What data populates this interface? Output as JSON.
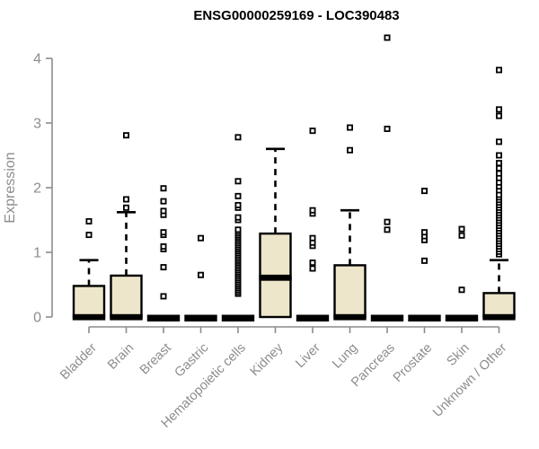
{
  "chart_data": {
    "type": "boxplot",
    "title": "ENSG00000259169 - LOC390483",
    "ylabel": "Expression",
    "xlabel": "",
    "ylim": [
      0,
      4.4
    ],
    "yticks": [
      0,
      1,
      2,
      3,
      4
    ],
    "grid": false,
    "legend": "none",
    "colors": {
      "box_fill": "#EDE6CB",
      "box_stroke": "#000000",
      "median": "#000000",
      "whisker": "#000000",
      "outlier_stroke": "#000000",
      "outlier_fill": "#FFFFFF",
      "axis": "#8C8C8C",
      "tick_label": "#8C8C8C",
      "title": "#000000"
    },
    "categories": [
      "Bladder",
      "Brain",
      "Breast",
      "Gastric",
      "Hematopoietic cells",
      "Kidney",
      "Liver",
      "Lung",
      "Pancreas",
      "Prostate",
      "Skin",
      "Unknown / Other"
    ],
    "boxes": [
      {
        "category": "Bladder",
        "q1": 0,
        "median": 0,
        "q3": 0.48,
        "whisker_low": 0,
        "whisker_high": 0.88,
        "outliers": [
          1.27,
          1.48
        ]
      },
      {
        "category": "Brain",
        "q1": 0,
        "median": 0,
        "q3": 0.64,
        "whisker_low": 0,
        "whisker_high": 1.62,
        "outliers": [
          1.69,
          1.82,
          2.81
        ]
      },
      {
        "category": "Breast",
        "q1": 0,
        "median": 0,
        "q3": 0,
        "whisker_low": 0,
        "whisker_high": 0,
        "outliers": [
          0.32,
          0.77,
          1.05,
          1.09,
          1.27,
          1.31,
          1.58,
          1.64,
          1.79,
          1.99
        ]
      },
      {
        "category": "Gastric",
        "q1": 0,
        "median": 0,
        "q3": 0,
        "whisker_low": 0,
        "whisker_high": 0,
        "outliers": [
          0.65,
          1.22
        ]
      },
      {
        "category": "Hematopoietic cells",
        "q1": 0,
        "median": 0,
        "q3": 0,
        "whisker_low": 0,
        "whisker_high": 0,
        "outliers": [
          0.36,
          0.39,
          0.42,
          0.45,
          0.48,
          0.51,
          0.54,
          0.57,
          0.6,
          0.63,
          0.66,
          0.69,
          0.72,
          0.75,
          0.78,
          0.81,
          0.84,
          0.87,
          0.9,
          0.93,
          0.96,
          0.99,
          1.02,
          1.05,
          1.08,
          1.11,
          1.14,
          1.17,
          1.2,
          1.23,
          1.26,
          1.29,
          1.32,
          1.35,
          1.5,
          1.54,
          1.69,
          1.73,
          1.87,
          2.1,
          2.78
        ]
      },
      {
        "category": "Kidney",
        "q1": 0,
        "median": 0.61,
        "q3": 1.29,
        "whisker_low": 0,
        "whisker_high": 2.6,
        "outliers": []
      },
      {
        "category": "Liver",
        "q1": 0,
        "median": 0,
        "q3": 0,
        "whisker_low": 0,
        "whisker_high": 0,
        "outliers": [
          0.75,
          0.84,
          1.1,
          1.15,
          1.22,
          1.6,
          1.65,
          2.88
        ]
      },
      {
        "category": "Lung",
        "q1": 0,
        "median": 0,
        "q3": 0.8,
        "whisker_low": 0,
        "whisker_high": 1.65,
        "outliers": [
          2.58,
          2.93
        ]
      },
      {
        "category": "Pancreas",
        "q1": 0,
        "median": 0,
        "q3": 0,
        "whisker_low": 0,
        "whisker_high": 0,
        "outliers": [
          1.35,
          1.47,
          2.91,
          4.32
        ]
      },
      {
        "category": "Prostate",
        "q1": 0,
        "median": 0,
        "q3": 0,
        "whisker_low": 0,
        "whisker_high": 0,
        "outliers": [
          0.87,
          1.19,
          1.25,
          1.31,
          1.95
        ]
      },
      {
        "category": "Skin",
        "q1": 0,
        "median": 0,
        "q3": 0,
        "whisker_low": 0,
        "whisker_high": 0,
        "outliers": [
          0.42,
          1.26,
          1.36
        ]
      },
      {
        "category": "Unknown / Other",
        "q1": 0,
        "median": 0,
        "q3": 0.37,
        "whisker_low": 0,
        "whisker_high": 0.88,
        "outliers": [
          0.97,
          1.01,
          1.05,
          1.09,
          1.13,
          1.17,
          1.21,
          1.25,
          1.29,
          1.33,
          1.37,
          1.41,
          1.45,
          1.49,
          1.53,
          1.57,
          1.61,
          1.65,
          1.69,
          1.73,
          1.77,
          1.81,
          1.85,
          1.89,
          1.96,
          2.02,
          2.08,
          2.15,
          2.22,
          2.3,
          2.38,
          2.5,
          2.71,
          3.11,
          3.21,
          3.82
        ]
      }
    ]
  }
}
